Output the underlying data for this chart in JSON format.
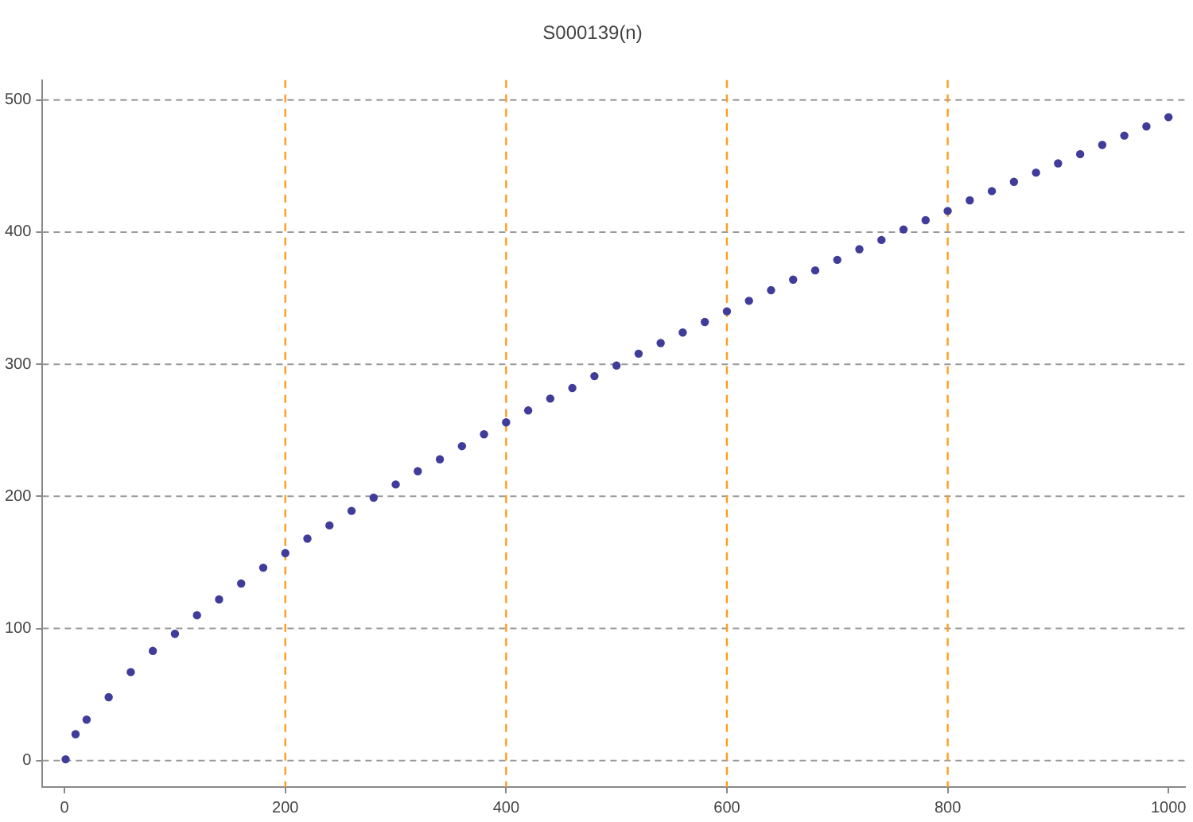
{
  "chart_data": {
    "type": "scatter",
    "title": "S000139(n)",
    "x": [
      1,
      10,
      20,
      40,
      60,
      80,
      100,
      120,
      140,
      160,
      180,
      200,
      220,
      240,
      260,
      280,
      300,
      320,
      340,
      360,
      380,
      400,
      420,
      440,
      460,
      480,
      500,
      520,
      540,
      560,
      580,
      600,
      620,
      640,
      660,
      680,
      700,
      720,
      740,
      760,
      780,
      800,
      820,
      840,
      860,
      880,
      900,
      920,
      940,
      960,
      980,
      1000
    ],
    "series": [
      {
        "color": "#3f3d99",
        "values": [
          1,
          20,
          31,
          48,
          67,
          83,
          96,
          110,
          122,
          134,
          146,
          157,
          168,
          178,
          189,
          199,
          209,
          219,
          228,
          238,
          247,
          256,
          265,
          274,
          282,
          291,
          299,
          308,
          316,
          324,
          332,
          340,
          348,
          356,
          364,
          371,
          379,
          387,
          394,
          402,
          409,
          416,
          424,
          431,
          438,
          445,
          452,
          459,
          466,
          473,
          480,
          487
        ]
      }
    ],
    "xlim": [
      -20,
      1015
    ],
    "ylim": [
      -20,
      515
    ],
    "xticks": [
      0,
      200,
      400,
      600,
      800,
      1000
    ],
    "yticks": [
      0,
      100,
      200,
      300,
      400,
      500
    ],
    "grid": "y",
    "marker": "circle",
    "legend": false,
    "ref_lines": [
      {
        "axis": "x",
        "value": 200,
        "color": "#ff9d1c",
        "line_style": "dashed"
      },
      {
        "axis": "x",
        "value": 400,
        "color": "#ff9d1c",
        "line_style": "dashed"
      },
      {
        "axis": "x",
        "value": 600,
        "color": "#ff9d1c",
        "line_style": "dashed"
      },
      {
        "axis": "x",
        "value": 800,
        "color": "#ff9d1c",
        "line_style": "dashed"
      }
    ]
  }
}
